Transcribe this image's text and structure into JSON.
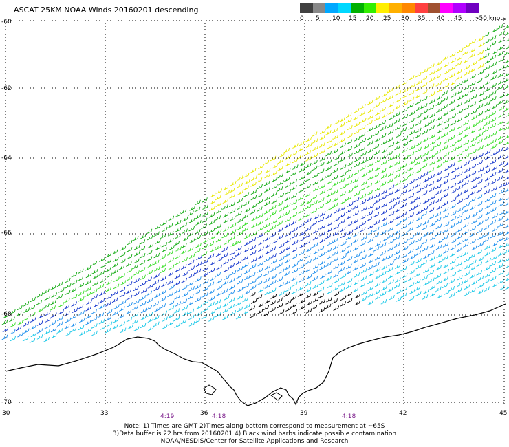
{
  "title": "ASCAT 25KM NOAA Winds 20160201 descending",
  "scale": {
    "colors": [
      "#404040",
      "#888888",
      "#00a8ff",
      "#00d8ff",
      "#00b000",
      "#33ee00",
      "#ffee00",
      "#ffb000",
      "#ff8800",
      "#ff4040",
      "#a05030",
      "#ff00ff",
      "#b000ff",
      "#7000c0"
    ],
    "labels": [
      "0",
      "5",
      "10",
      "15",
      "20",
      "25",
      "30",
      "35",
      "40",
      "45",
      ">50 knots"
    ]
  },
  "axes": {
    "lat_labels": [
      "-60",
      "-62",
      "-64",
      "-66",
      "-68",
      "-70"
    ],
    "lon_labels": [
      "30",
      "33",
      "36",
      "39",
      "42",
      "45"
    ],
    "lat_range": [
      -60,
      -70
    ],
    "lon_range": [
      30,
      45
    ],
    "grid": "dotted"
  },
  "times": [
    "4:19",
    "4:18",
    "4:18"
  ],
  "notes": {
    "line1": "Note: 1) Times are GMT 2)Times along bottom correspond to measurement at ~65S",
    "line2": "3)Data buffer is 22 hrs from 20160201 4) Black wind barbs indicate possible contamination",
    "line3": "NOAA/NESDIS/Center for Satellite Applications and Research"
  }
}
